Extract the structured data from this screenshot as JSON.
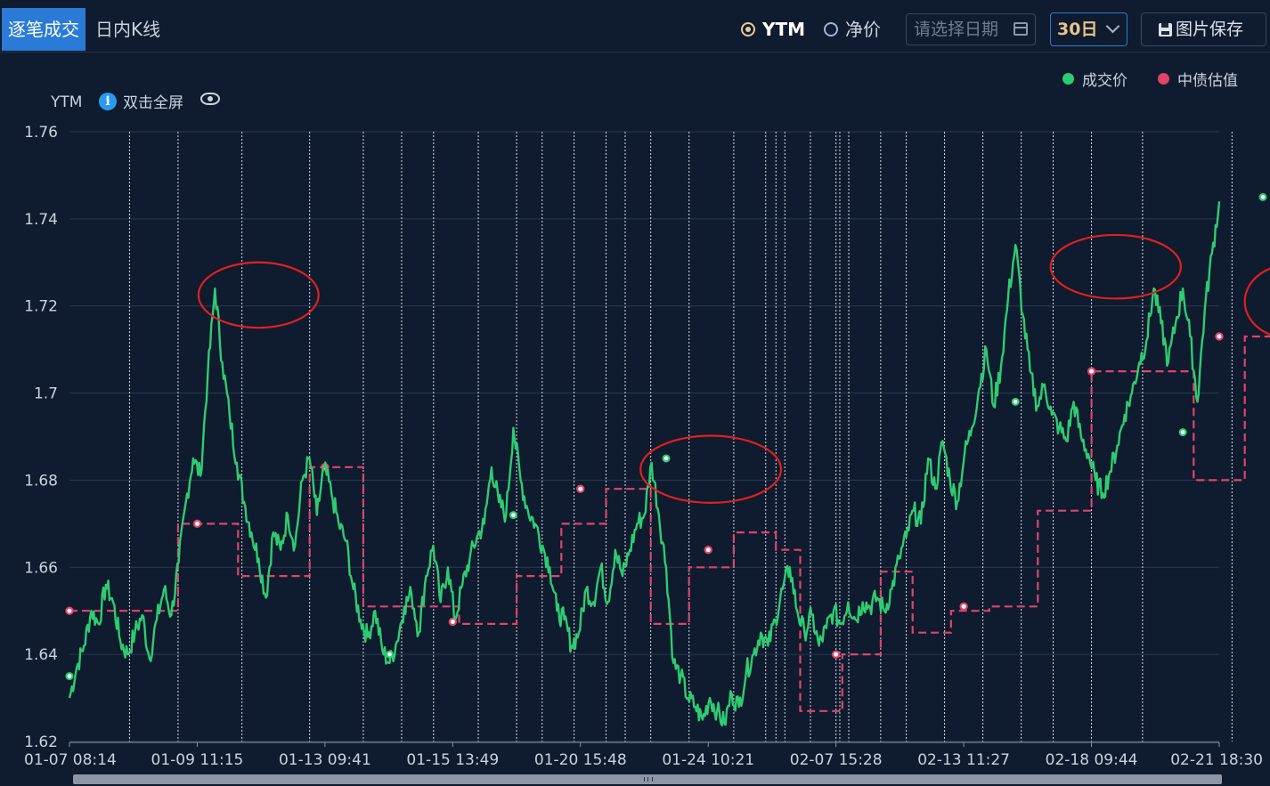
{
  "toolbar": {
    "tab_trades": "逐笔成交",
    "tab_kline": "日内K线",
    "radio_ytm": "YTM",
    "radio_clean_price": "净价",
    "date_placeholder": "请选择日期",
    "range_value": "30日",
    "save_label": "图片保存"
  },
  "chart_toolbar": {
    "y_name": "YTM",
    "fullscreen_hint": "双击全屏"
  },
  "colors": {
    "trade": "#2ecc71",
    "valuation": "#e0446a",
    "circle": "#e02020",
    "accent": "#2a7ad8"
  },
  "chart_data": {
    "type": "line",
    "title": "",
    "ylabel": "YTM",
    "xlabel": "",
    "ylim": [
      1.62,
      1.76
    ],
    "yticks": [
      "1.76",
      "1.74",
      "1.72",
      "1.7",
      "1.68",
      "1.66",
      "1.64",
      "1.62"
    ],
    "xtick_labels": [
      "01-07 08:14",
      "01-09 11:15",
      "01-13 09:41",
      "01-15 13:49",
      "01-20 15:48",
      "01-24 10:21",
      "02-07 15:28",
      "02-13 11:27",
      "02-18 09:44",
      "02-21 18:30"
    ],
    "legend": {
      "position": "top-right",
      "items": [
        "成交价",
        "中债估值"
      ]
    },
    "grid": true,
    "series": [
      {
        "name": "成交价",
        "style": "line",
        "values": [
          1.63,
          1.637,
          1.642,
          1.65,
          1.647,
          1.656,
          1.652,
          1.643,
          1.64,
          1.645,
          1.649,
          1.639,
          1.648,
          1.655,
          1.649,
          1.661,
          1.675,
          1.685,
          1.681,
          1.704,
          1.724,
          1.707,
          1.695,
          1.684,
          1.675,
          1.668,
          1.662,
          1.653,
          1.668,
          1.664,
          1.672,
          1.665,
          1.68,
          1.685,
          1.672,
          1.683,
          1.677,
          1.67,
          1.666,
          1.655,
          1.648,
          1.644,
          1.65,
          1.641,
          1.638,
          1.643,
          1.651,
          1.654,
          1.645,
          1.658,
          1.665,
          1.652,
          1.66,
          1.648,
          1.656,
          1.662,
          1.667,
          1.67,
          1.683,
          1.675,
          1.672,
          1.692,
          1.68,
          1.673,
          1.67,
          1.665,
          1.66,
          1.65,
          1.648,
          1.642,
          1.645,
          1.655,
          1.652,
          1.66,
          1.652,
          1.664,
          1.658,
          1.664,
          1.67,
          1.672,
          1.684,
          1.672,
          1.66,
          1.638,
          1.635,
          1.63,
          1.628,
          1.625,
          1.63,
          1.627,
          1.624,
          1.631,
          1.628,
          1.636,
          1.64,
          1.645,
          1.642,
          1.648,
          1.655,
          1.66,
          1.65,
          1.645,
          1.649,
          1.642,
          1.646,
          1.65,
          1.647,
          1.652,
          1.648,
          1.652,
          1.651,
          1.653,
          1.65,
          1.655,
          1.662,
          1.667,
          1.673,
          1.67,
          1.685,
          1.678,
          1.689,
          1.68,
          1.675,
          1.686,
          1.692,
          1.701,
          1.71,
          1.697,
          1.706,
          1.722,
          1.734,
          1.718,
          1.705,
          1.697,
          1.702,
          1.695,
          1.692,
          1.689,
          1.698,
          1.69,
          1.686,
          1.68,
          1.677,
          1.682,
          1.688,
          1.695,
          1.7,
          1.707,
          1.712,
          1.724,
          1.716,
          1.707,
          1.716,
          1.724,
          1.713,
          1.698,
          1.719,
          1.732,
          1.744
        ],
        "markers": [
          {
            "index": 0,
            "value": 1.635
          },
          {
            "index": 44,
            "value": 1.64
          },
          {
            "index": 61,
            "value": 1.672
          },
          {
            "index": 82,
            "value": 1.685
          },
          {
            "index": 130,
            "value": 1.698
          },
          {
            "index": 153,
            "value": 1.691
          },
          {
            "index": 164,
            "value": 1.745
          }
        ]
      },
      {
        "name": "中债估值",
        "style": "step-dashed",
        "steps": [
          {
            "from_tick": 0,
            "to_tick": 0.85,
            "value": 1.65
          },
          {
            "from_tick": 0.85,
            "to_tick": 1.32,
            "value": 1.67
          },
          {
            "from_tick": 1.32,
            "to_tick": 1.88,
            "value": 1.658
          },
          {
            "from_tick": 1.88,
            "to_tick": 2.3,
            "value": 1.683
          },
          {
            "from_tick": 2.3,
            "to_tick": 3.05,
            "value": 1.651
          },
          {
            "from_tick": 3.05,
            "to_tick": 3.5,
            "value": 1.647
          },
          {
            "from_tick": 3.5,
            "to_tick": 3.85,
            "value": 1.658
          },
          {
            "from_tick": 3.85,
            "to_tick": 4.2,
            "value": 1.67
          },
          {
            "from_tick": 4.2,
            "to_tick": 4.55,
            "value": 1.678
          },
          {
            "from_tick": 4.55,
            "to_tick": 4.85,
            "value": 1.647
          },
          {
            "from_tick": 4.85,
            "to_tick": 5.2,
            "value": 1.66
          },
          {
            "from_tick": 5.2,
            "to_tick": 5.53,
            "value": 1.668
          },
          {
            "from_tick": 5.53,
            "to_tick": 5.72,
            "value": 1.664
          },
          {
            "from_tick": 5.72,
            "to_tick": 6.05,
            "value": 1.627
          },
          {
            "from_tick": 6.05,
            "to_tick": 6.35,
            "value": 1.64
          },
          {
            "from_tick": 6.35,
            "to_tick": 6.6,
            "value": 1.659
          },
          {
            "from_tick": 6.6,
            "to_tick": 6.9,
            "value": 1.645
          },
          {
            "from_tick": 6.9,
            "to_tick": 7.2,
            "value": 1.65
          },
          {
            "from_tick": 7.2,
            "to_tick": 7.58,
            "value": 1.651
          },
          {
            "from_tick": 7.58,
            "to_tick": 8.0,
            "value": 1.673
          },
          {
            "from_tick": 8.0,
            "to_tick": 8.8,
            "value": 1.705
          },
          {
            "from_tick": 8.8,
            "to_tick": 9.2,
            "value": 1.68
          },
          {
            "from_tick": 9.2,
            "to_tick": 10.0,
            "value": 1.713
          }
        ],
        "markers": [
          {
            "tick": 0,
            "value": 1.65
          },
          {
            "tick": 1.0,
            "value": 1.67
          },
          {
            "tick": 2.0,
            "value": 1.683
          },
          {
            "tick": 3.0,
            "value": 1.6475
          },
          {
            "tick": 4.0,
            "value": 1.678
          },
          {
            "tick": 5.0,
            "value": 1.664
          },
          {
            "tick": 6.0,
            "value": 1.64
          },
          {
            "tick": 7.0,
            "value": 1.651
          },
          {
            "tick": 8.0,
            "value": 1.705
          },
          {
            "tick": 9.0,
            "value": 1.713
          },
          {
            "tick": 10.0,
            "value": 1.713
          }
        ]
      }
    ],
    "session_dividers": [
      0.47,
      0.85,
      1.35,
      1.88,
      2.3,
      2.6,
      2.85,
      3.2,
      3.5,
      3.7,
      3.95,
      4.2,
      4.35,
      4.55,
      4.85,
      5.2,
      5.45,
      5.53,
      5.6,
      5.8,
      6.0,
      6.03,
      6.1,
      6.35,
      6.55,
      6.85,
      7.15,
      7.45,
      7.7,
      8.0,
      8.4,
      9.1,
      9.45
    ],
    "annotations": [
      {
        "type": "circle",
        "tick": 1.48,
        "value": 1.7225,
        "rx_ticks": 0.47,
        "ry_value": 0.0075
      },
      {
        "type": "circle",
        "tick": 5.02,
        "value": 1.6825,
        "rx_ticks": 0.55,
        "ry_value": 0.0077
      },
      {
        "type": "circle",
        "tick": 8.19,
        "value": 1.729,
        "rx_ticks": 0.51,
        "ry_value": 0.0073
      },
      {
        "type": "circle",
        "tick": 9.55,
        "value": 1.721,
        "rx_ticks": 0.35,
        "ry_value": 0.0084
      }
    ]
  }
}
